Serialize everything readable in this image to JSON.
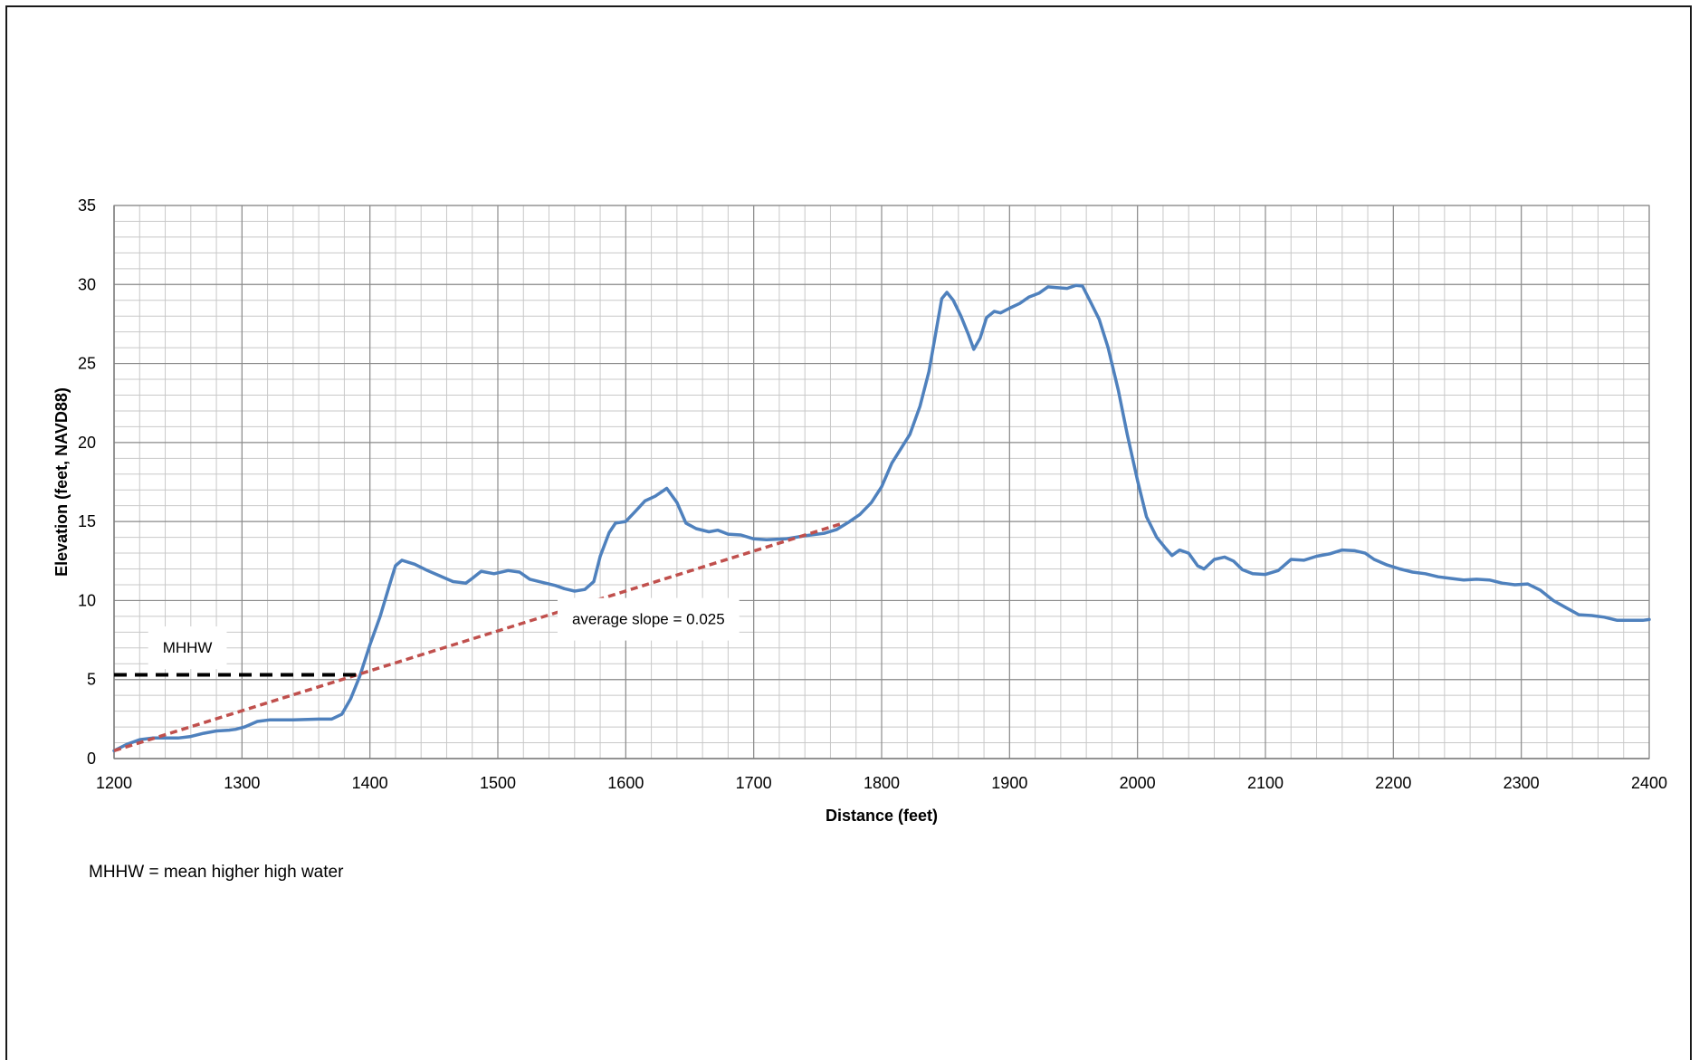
{
  "chart_data": {
    "type": "line",
    "title": "",
    "xlabel": "Distance (feet)",
    "ylabel": "Elevation (feet, NAVD88)",
    "xlim": [
      1200,
      2400
    ],
    "ylim": [
      0,
      35
    ],
    "xticks": [
      1200,
      1300,
      1400,
      1500,
      1600,
      1700,
      1800,
      1900,
      2000,
      2100,
      2200,
      2300,
      2400
    ],
    "yticks": [
      0,
      5,
      10,
      15,
      20,
      25,
      30,
      35
    ],
    "grid": true,
    "legend": "none",
    "series": [
      {
        "name": "",
        "style": "solid",
        "color": "#4f81bd",
        "points": [
          [
            1200,
            0.5
          ],
          [
            1210,
            0.9
          ],
          [
            1220,
            1.2
          ],
          [
            1230,
            1.3
          ],
          [
            1240,
            1.3
          ],
          [
            1250,
            1.3
          ],
          [
            1260,
            1.4
          ],
          [
            1270,
            1.6
          ],
          [
            1280,
            1.75
          ],
          [
            1290,
            1.8
          ],
          [
            1295,
            1.85
          ],
          [
            1302,
            2.0
          ],
          [
            1312,
            2.35
          ],
          [
            1322,
            2.45
          ],
          [
            1340,
            2.45
          ],
          [
            1360,
            2.5
          ],
          [
            1370,
            2.5
          ],
          [
            1378,
            2.8
          ],
          [
            1385,
            3.8
          ],
          [
            1392,
            5.2
          ],
          [
            1400,
            7.2
          ],
          [
            1408,
            9.0
          ],
          [
            1415,
            10.9
          ],
          [
            1420,
            12.2
          ],
          [
            1425,
            12.55
          ],
          [
            1435,
            12.3
          ],
          [
            1445,
            11.9
          ],
          [
            1455,
            11.55
          ],
          [
            1465,
            11.2
          ],
          [
            1475,
            11.1
          ],
          [
            1480,
            11.4
          ],
          [
            1487,
            11.85
          ],
          [
            1497,
            11.7
          ],
          [
            1508,
            11.9
          ],
          [
            1517,
            11.8
          ],
          [
            1525,
            11.35
          ],
          [
            1535,
            11.15
          ],
          [
            1545,
            10.95
          ],
          [
            1552,
            10.75
          ],
          [
            1560,
            10.6
          ],
          [
            1568,
            10.7
          ],
          [
            1575,
            11.2
          ],
          [
            1580,
            12.8
          ],
          [
            1587,
            14.3
          ],
          [
            1592,
            14.9
          ],
          [
            1600,
            15.0
          ],
          [
            1607,
            15.6
          ],
          [
            1615,
            16.3
          ],
          [
            1623,
            16.6
          ],
          [
            1632,
            17.1
          ],
          [
            1640,
            16.2
          ],
          [
            1647,
            14.9
          ],
          [
            1655,
            14.55
          ],
          [
            1665,
            14.35
          ],
          [
            1672,
            14.45
          ],
          [
            1680,
            14.2
          ],
          [
            1690,
            14.15
          ],
          [
            1700,
            13.9
          ],
          [
            1710,
            13.85
          ],
          [
            1725,
            13.9
          ],
          [
            1740,
            14.1
          ],
          [
            1755,
            14.25
          ],
          [
            1765,
            14.5
          ],
          [
            1775,
            15.0
          ],
          [
            1783,
            15.45
          ],
          [
            1792,
            16.2
          ],
          [
            1800,
            17.2
          ],
          [
            1808,
            18.7
          ],
          [
            1815,
            19.6
          ],
          [
            1822,
            20.5
          ],
          [
            1830,
            22.3
          ],
          [
            1837,
            24.5
          ],
          [
            1842,
            26.8
          ],
          [
            1847,
            29.1
          ],
          [
            1851,
            29.5
          ],
          [
            1856,
            29.0
          ],
          [
            1862,
            28.0
          ],
          [
            1868,
            26.8
          ],
          [
            1872,
            25.9
          ],
          [
            1877,
            26.6
          ],
          [
            1882,
            27.9
          ],
          [
            1888,
            28.3
          ],
          [
            1893,
            28.2
          ],
          [
            1900,
            28.5
          ],
          [
            1908,
            28.8
          ],
          [
            1915,
            29.2
          ],
          [
            1923,
            29.45
          ],
          [
            1930,
            29.85
          ],
          [
            1937,
            29.8
          ],
          [
            1945,
            29.75
          ],
          [
            1952,
            29.95
          ],
          [
            1957,
            29.9
          ],
          [
            1962,
            29.1
          ],
          [
            1970,
            27.8
          ],
          [
            1977,
            26.0
          ],
          [
            1985,
            23.3
          ],
          [
            1992,
            20.5
          ],
          [
            2000,
            17.6
          ],
          [
            2007,
            15.3
          ],
          [
            2015,
            14.0
          ],
          [
            2022,
            13.3
          ],
          [
            2027,
            12.85
          ],
          [
            2033,
            13.2
          ],
          [
            2040,
            13.0
          ],
          [
            2047,
            12.2
          ],
          [
            2052,
            12.0
          ],
          [
            2060,
            12.6
          ],
          [
            2068,
            12.75
          ],
          [
            2075,
            12.5
          ],
          [
            2082,
            11.95
          ],
          [
            2090,
            11.7
          ],
          [
            2100,
            11.65
          ],
          [
            2110,
            11.9
          ],
          [
            2120,
            12.6
          ],
          [
            2130,
            12.55
          ],
          [
            2140,
            12.8
          ],
          [
            2150,
            12.95
          ],
          [
            2160,
            13.2
          ],
          [
            2170,
            13.15
          ],
          [
            2178,
            13.0
          ],
          [
            2185,
            12.6
          ],
          [
            2195,
            12.25
          ],
          [
            2205,
            12.0
          ],
          [
            2215,
            11.8
          ],
          [
            2225,
            11.7
          ],
          [
            2235,
            11.5
          ],
          [
            2245,
            11.4
          ],
          [
            2255,
            11.3
          ],
          [
            2265,
            11.35
          ],
          [
            2275,
            11.3
          ],
          [
            2285,
            11.1
          ],
          [
            2295,
            11.0
          ],
          [
            2305,
            11.05
          ],
          [
            2315,
            10.65
          ],
          [
            2325,
            10.0
          ],
          [
            2335,
            9.55
          ],
          [
            2345,
            9.1
          ],
          [
            2355,
            9.05
          ],
          [
            2365,
            8.95
          ],
          [
            2375,
            8.75
          ],
          [
            2385,
            8.75
          ],
          [
            2395,
            8.75
          ],
          [
            2400,
            8.8
          ]
        ]
      },
      {
        "name": "",
        "style": "dashed",
        "color": "#c0504d",
        "points": [
          [
            1200,
            0.5
          ],
          [
            1770,
            14.9
          ]
        ]
      },
      {
        "name": "",
        "style": "dashed",
        "color": "#000000",
        "points": [
          [
            1200,
            5.3
          ],
          [
            1390,
            5.3
          ]
        ]
      }
    ],
    "annotations": [
      {
        "text": "MHHW",
        "x": 1238,
        "y": 6.7,
        "box": true
      },
      {
        "text": "average slope = 0.025",
        "x": 1558,
        "y": 8.5,
        "box": true
      }
    ]
  },
  "footnote": "MHHW = mean higher high water"
}
